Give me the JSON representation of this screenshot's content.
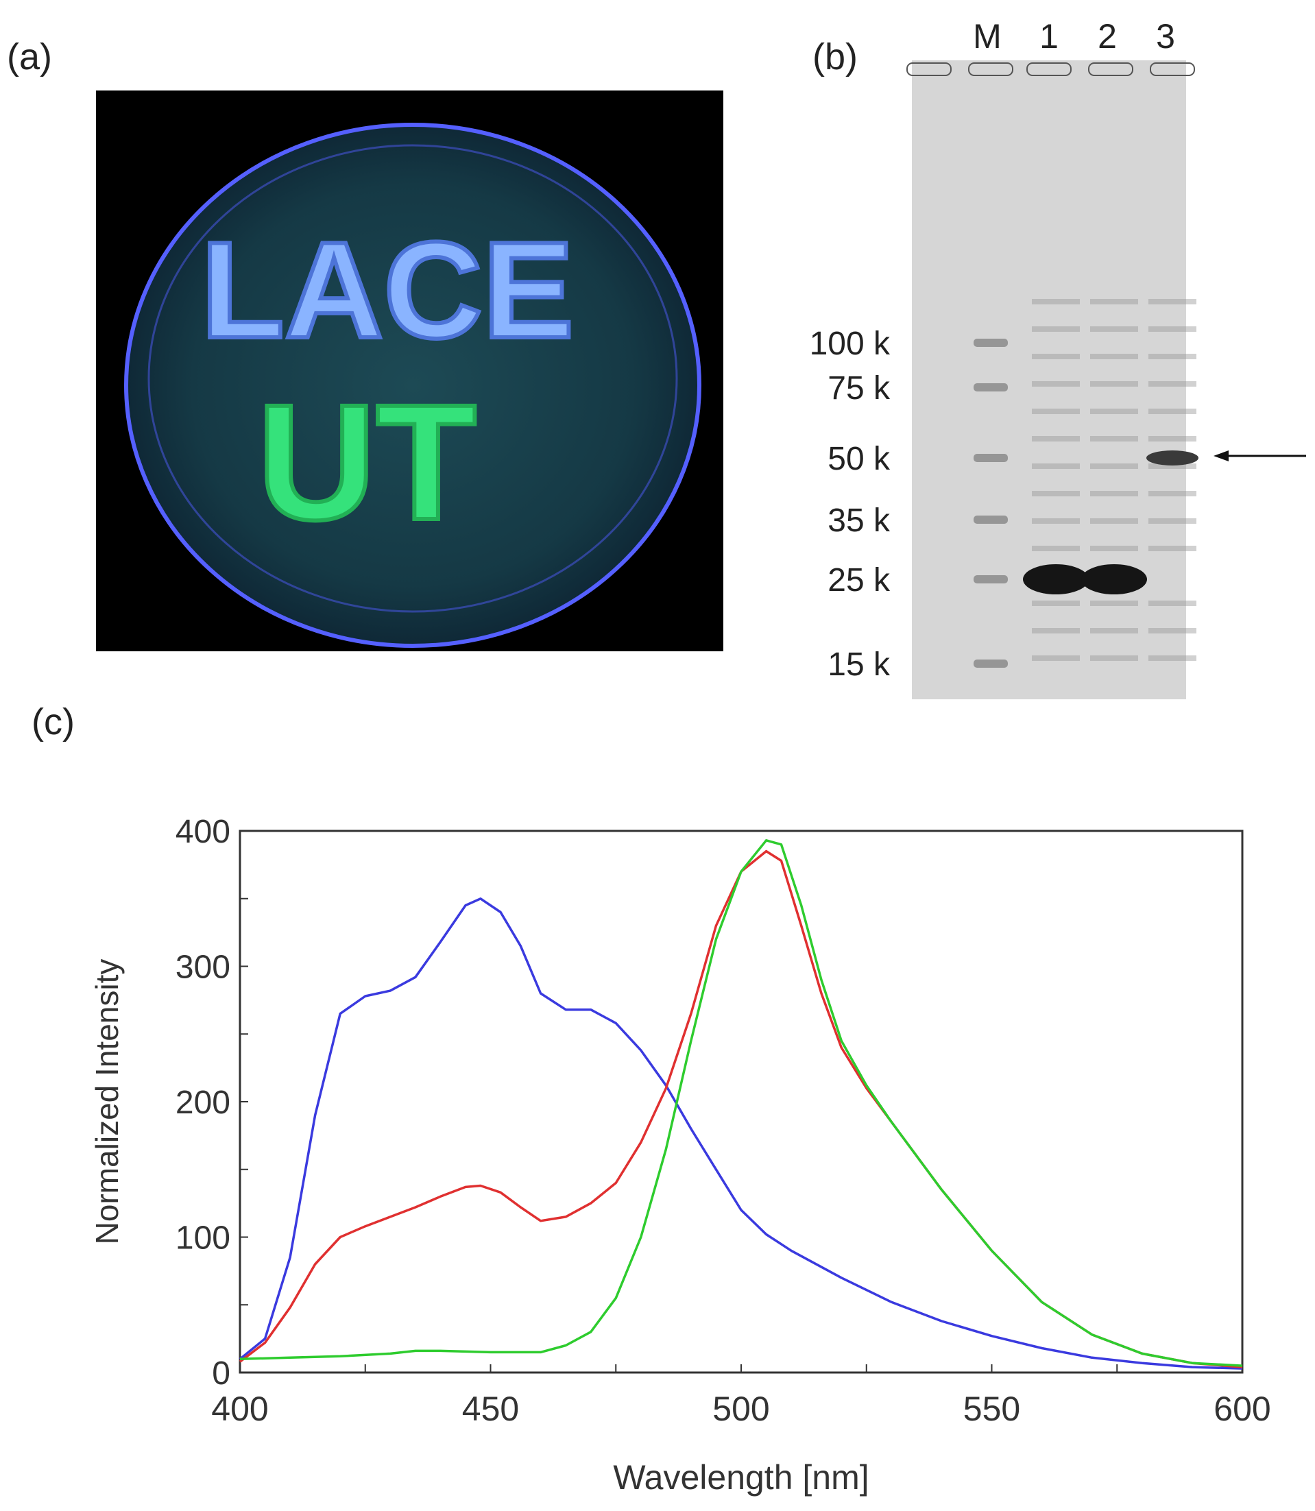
{
  "panels": {
    "a": {
      "label": "(a)",
      "plate_text_line1": "LACE",
      "plate_text_line2": "UT"
    },
    "b": {
      "label": "(b)",
      "lanes": [
        "M",
        "1",
        "2",
        "3"
      ],
      "markers": [
        "100 k",
        "75 k",
        "50 k",
        "35 k",
        "25 k",
        "15 k"
      ]
    },
    "c": {
      "label": "(c)"
    }
  },
  "chart_data": {
    "type": "line",
    "xlabel": "Wavelength [nm]",
    "ylabel": "Normalized Intensity",
    "xlim": [
      400,
      600
    ],
    "ylim": [
      0,
      400
    ],
    "xticks": [
      400,
      450,
      500,
      550,
      600
    ],
    "yticks": [
      0,
      100,
      200,
      300,
      400
    ],
    "grid": false,
    "series": [
      {
        "color": "#3a3adf",
        "points": [
          [
            400,
            10
          ],
          [
            405,
            25
          ],
          [
            410,
            85
          ],
          [
            415,
            190
          ],
          [
            420,
            265
          ],
          [
            425,
            278
          ],
          [
            430,
            282
          ],
          [
            435,
            292
          ],
          [
            440,
            318
          ],
          [
            445,
            345
          ],
          [
            448,
            350
          ],
          [
            452,
            340
          ],
          [
            456,
            315
          ],
          [
            460,
            280
          ],
          [
            465,
            268
          ],
          [
            470,
            268
          ],
          [
            475,
            258
          ],
          [
            480,
            238
          ],
          [
            485,
            212
          ],
          [
            490,
            180
          ],
          [
            495,
            150
          ],
          [
            500,
            120
          ],
          [
            505,
            102
          ],
          [
            510,
            90
          ],
          [
            520,
            70
          ],
          [
            530,
            52
          ],
          [
            540,
            38
          ],
          [
            550,
            27
          ],
          [
            560,
            18
          ],
          [
            570,
            11
          ],
          [
            580,
            7
          ],
          [
            590,
            4
          ],
          [
            600,
            3
          ]
        ]
      },
      {
        "color": "#e03030",
        "points": [
          [
            400,
            8
          ],
          [
            405,
            22
          ],
          [
            410,
            48
          ],
          [
            415,
            80
          ],
          [
            420,
            100
          ],
          [
            425,
            108
          ],
          [
            430,
            115
          ],
          [
            435,
            122
          ],
          [
            440,
            130
          ],
          [
            445,
            137
          ],
          [
            448,
            138
          ],
          [
            452,
            133
          ],
          [
            456,
            122
          ],
          [
            460,
            112
          ],
          [
            465,
            115
          ],
          [
            470,
            125
          ],
          [
            475,
            140
          ],
          [
            480,
            170
          ],
          [
            485,
            210
          ],
          [
            490,
            265
          ],
          [
            495,
            330
          ],
          [
            500,
            370
          ],
          [
            505,
            385
          ],
          [
            508,
            378
          ],
          [
            512,
            330
          ],
          [
            516,
            280
          ],
          [
            520,
            240
          ],
          [
            525,
            210
          ],
          [
            530,
            185
          ],
          [
            540,
            135
          ],
          [
            550,
            90
          ],
          [
            560,
            52
          ],
          [
            570,
            28
          ],
          [
            580,
            14
          ],
          [
            590,
            7
          ],
          [
            600,
            4
          ]
        ]
      },
      {
        "color": "#2ecc2e",
        "points": [
          [
            400,
            10
          ],
          [
            410,
            11
          ],
          [
            420,
            12
          ],
          [
            430,
            14
          ],
          [
            435,
            16
          ],
          [
            440,
            16
          ],
          [
            450,
            15
          ],
          [
            460,
            15
          ],
          [
            465,
            20
          ],
          [
            470,
            30
          ],
          [
            475,
            55
          ],
          [
            480,
            100
          ],
          [
            485,
            165
          ],
          [
            490,
            245
          ],
          [
            495,
            320
          ],
          [
            500,
            370
          ],
          [
            505,
            393
          ],
          [
            508,
            390
          ],
          [
            512,
            345
          ],
          [
            516,
            290
          ],
          [
            520,
            245
          ],
          [
            525,
            212
          ],
          [
            530,
            185
          ],
          [
            540,
            135
          ],
          [
            550,
            90
          ],
          [
            560,
            52
          ],
          [
            570,
            28
          ],
          [
            580,
            14
          ],
          [
            590,
            7
          ],
          [
            600,
            5
          ]
        ]
      }
    ]
  }
}
